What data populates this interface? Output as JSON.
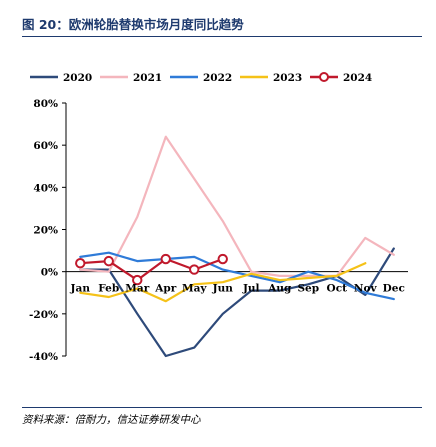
{
  "figure": {
    "title": "图 20：欧洲轮胎替换市场月度同比趋势",
    "source": "资料来源：倍耐力，信达证券研发中心"
  },
  "chart_data": {
    "type": "line",
    "title": "欧洲轮胎替换市场月度同比趋势",
    "xlabel": "",
    "ylabel": "",
    "categories": [
      "Jan",
      "Feb",
      "Mar",
      "Apr",
      "May",
      "Jun",
      "Jul",
      "Aug",
      "Sep",
      "Oct",
      "Nov",
      "Dec"
    ],
    "ylim": [
      -40,
      80
    ],
    "yticks": [
      80,
      60,
      40,
      20,
      0,
      -20,
      -40
    ],
    "ytick_labels": [
      "80%",
      "60%",
      "40%",
      "20%",
      "0%",
      "-20%",
      "-40%"
    ],
    "grid": false,
    "legend_position": "top",
    "series": [
      {
        "name": "2020",
        "color": "#2e4a7a",
        "values": [
          1,
          1,
          -20,
          -40,
          -36,
          -20,
          -9,
          -9,
          -6,
          -2,
          -11,
          11
        ]
      },
      {
        "name": "2021",
        "color": "#f4b6bd",
        "values": [
          1,
          0,
          26,
          64,
          44,
          24,
          0,
          -2,
          -2,
          -2,
          16,
          8
        ]
      },
      {
        "name": "2022",
        "color": "#2f7bd8",
        "values": [
          7,
          9,
          5,
          6,
          7,
          1,
          -2,
          -5,
          0,
          -4,
          -10,
          -13
        ]
      },
      {
        "name": "2023",
        "color": "#f5c218",
        "values": [
          -10,
          -12,
          -8,
          -14,
          -6,
          -5,
          -1,
          -4,
          -3,
          -2,
          4,
          null
        ]
      },
      {
        "name": "2024",
        "color": "#c0192c",
        "values": [
          4,
          5,
          -4,
          6,
          1,
          6,
          null,
          null,
          null,
          null,
          null,
          null
        ],
        "marker": "circle"
      }
    ]
  }
}
